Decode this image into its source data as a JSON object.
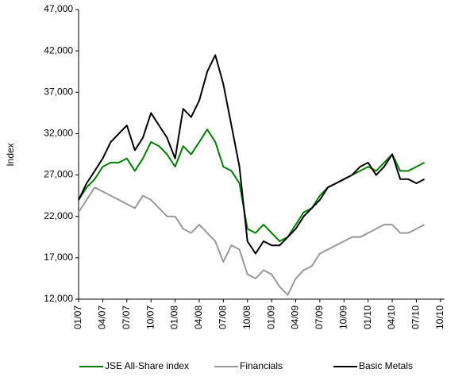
{
  "chart_data": {
    "type": "line",
    "y_label": "Index",
    "categories": [
      "01/07",
      null,
      null,
      "04/07",
      null,
      null,
      "07/07",
      null,
      null,
      "10/07",
      null,
      null,
      "01/08",
      null,
      null,
      "04/08",
      null,
      null,
      "07/08",
      null,
      null,
      "10/08",
      null,
      null,
      "01/09",
      null,
      null,
      "04/09",
      null,
      null,
      "07/09",
      null,
      null,
      "10/09",
      null,
      null,
      "01/10",
      null,
      null,
      "04/10",
      null,
      null,
      "07/10",
      null,
      null,
      "10/10"
    ],
    "series": [
      {
        "name": "JSE All-Share index",
        "color": "#008000",
        "values": [
          24000,
          25500,
          26500,
          28000,
          28500,
          28500,
          29000,
          27500,
          29000,
          31000,
          30500,
          29500,
          28000,
          30500,
          29500,
          31000,
          32500,
          31000,
          28000,
          27500,
          26000,
          20500,
          20000,
          21000,
          20000,
          19000,
          19500,
          21000,
          22500,
          23000,
          24500,
          25500,
          26000,
          26500,
          27000,
          27500,
          28000,
          27500,
          28500,
          29500,
          27500,
          27500,
          28000,
          28500,
          null,
          null
        ]
      },
      {
        "name": "Financials",
        "color": "#999999",
        "values": [
          22500,
          24000,
          25500,
          25000,
          24500,
          24000,
          23500,
          23000,
          24500,
          24000,
          23000,
          22000,
          22000,
          20500,
          20000,
          21000,
          20000,
          19000,
          16500,
          18500,
          18000,
          15000,
          14500,
          15500,
          15000,
          13500,
          12500,
          14500,
          15500,
          16000,
          17500,
          18000,
          18500,
          19000,
          19500,
          19500,
          20000,
          20500,
          21000,
          21000,
          20000,
          20000,
          20500,
          21000,
          null,
          null
        ]
      },
      {
        "name": "Basic Metals",
        "color": "#000000",
        "values": [
          24000,
          26000,
          27500,
          29000,
          31000,
          32000,
          33000,
          30000,
          31500,
          34500,
          33000,
          31500,
          29000,
          35000,
          34000,
          36000,
          39500,
          41500,
          38000,
          33000,
          28000,
          19000,
          17500,
          19000,
          18500,
          18500,
          19500,
          20500,
          22000,
          23000,
          24000,
          25500,
          26000,
          26500,
          27000,
          28000,
          28500,
          27000,
          28000,
          29500,
          26500,
          26500,
          26000,
          26500,
          null,
          null
        ]
      }
    ],
    "ylim": [
      12000,
      47000
    ],
    "yticks": [
      {
        "value": 12000,
        "label": "12,000"
      },
      {
        "value": 17000,
        "label": "17,000"
      },
      {
        "value": 22000,
        "label": "22,000"
      },
      {
        "value": 27000,
        "label": "27,000"
      },
      {
        "value": 32000,
        "label": "32,000"
      },
      {
        "value": 37000,
        "label": "37,000"
      },
      {
        "value": 42000,
        "label": "42,000"
      },
      {
        "value": 47000,
        "label": "47,000"
      }
    ],
    "grid": false,
    "legend": "bottom"
  }
}
